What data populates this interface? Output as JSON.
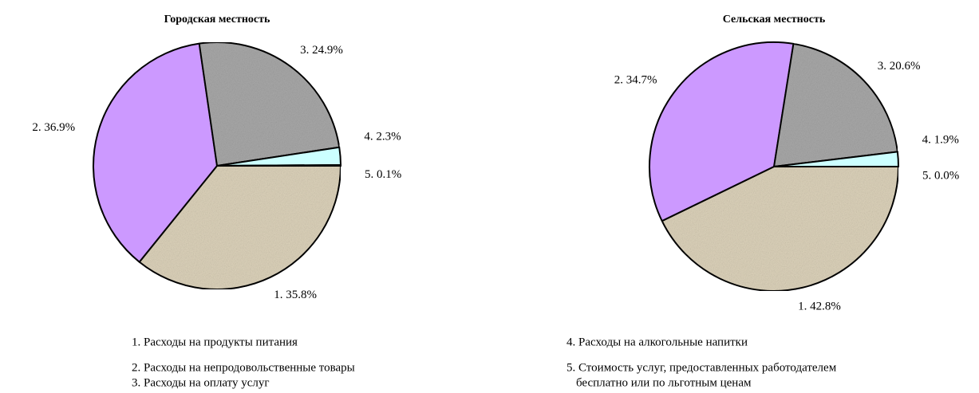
{
  "chart_data": [
    {
      "type": "pie",
      "title": "Городская местность",
      "values": [
        35.8,
        36.9,
        24.9,
        2.3,
        0.1
      ],
      "value_labels": [
        "1. 35.8%",
        "2. 36.9%",
        "3. 24.9%",
        "4. 2.3%",
        "5. 0.1%"
      ],
      "colors": [
        "#ddd3bb",
        "#cc99ff",
        "#a9a9a9",
        "#ccffff",
        "#f4f4f4"
      ]
    },
    {
      "type": "pie",
      "title": "Сельская местность",
      "values": [
        42.8,
        34.7,
        20.6,
        1.9,
        0.0
      ],
      "value_labels": [
        "1. 42.8%",
        "2. 34.7%",
        "3. 20.6%",
        "4. 1.9%",
        "5. 0.0%"
      ],
      "colors": [
        "#ddd3bb",
        "#cc99ff",
        "#a9a9a9",
        "#ccffff",
        "#f4f4f4"
      ]
    }
  ],
  "legend": [
    "1. Расходы на продукты питания",
    "2. Расходы на непродовольственные товары",
    "3. Расходы на оплату услуг",
    "4. Расходы на алкогольные напитки",
    "5. Стоимость услуг, предоставленных работодателем",
    "бесплатно или по льготным ценам"
  ]
}
